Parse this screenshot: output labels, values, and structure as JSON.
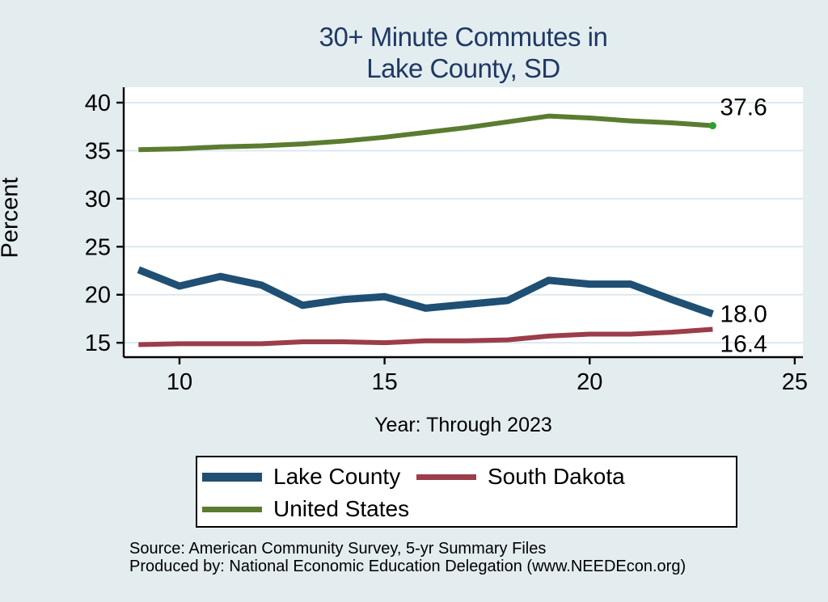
{
  "title": {
    "line1": "30+ Minute Commutes in",
    "line2": "Lake County, SD"
  },
  "y_axis_title": "Percent",
  "x_axis_title": "Year: Through 2023",
  "source": {
    "line1": "Source: American Community Survey, 5-yr Summary Files",
    "line2": "Produced by: National Economic Education Delegation (www.NEEDEcon.org)"
  },
  "legend": {
    "position": "bottom",
    "items": [
      {
        "label": "Lake County",
        "color": "#1f4f72",
        "swatch_height": 11
      },
      {
        "label": "South Dakota",
        "color": "#9c3d4a",
        "swatch_height": 7
      },
      {
        "label": "United States",
        "color": "#5a7c30",
        "swatch_height": 7
      }
    ]
  },
  "colors": {
    "background": "#e3edf0",
    "plot_background": "#ffffff",
    "gridline": "#dce8f1",
    "axis": "#000000",
    "title": "#1f3864",
    "end_marker": "#2f9e33"
  },
  "chart_data": {
    "type": "line",
    "title": "30+ Minute Commutes in Lake County, SD",
    "xlabel": "Year: Through 2023",
    "ylabel": "Percent",
    "grid": true,
    "x": [
      9,
      10,
      11,
      12,
      13,
      14,
      15,
      16,
      17,
      18,
      19,
      20,
      21,
      22,
      23
    ],
    "x_axis": {
      "ticks": [
        10,
        15,
        20,
        25
      ],
      "range": [
        8.64,
        25.2
      ]
    },
    "y_axis": {
      "ticks": [
        15,
        20,
        25,
        30,
        35,
        40
      ],
      "range": [
        13.5,
        41.6
      ]
    },
    "series": [
      {
        "name": "Lake County",
        "color": "#1f4f72",
        "line_width": 9,
        "values": [
          22.6,
          20.9,
          21.9,
          21.0,
          18.9,
          19.5,
          19.8,
          18.6,
          19.0,
          19.4,
          21.5,
          21.1,
          21.1,
          19.5,
          18.0
        ],
        "end_label": "18.0",
        "end_label_dy": 0,
        "end_marker": false
      },
      {
        "name": "South Dakota",
        "color": "#9c3d4a",
        "line_width": 6,
        "values": [
          14.8,
          14.9,
          14.9,
          14.9,
          15.1,
          15.1,
          15.0,
          15.2,
          15.2,
          15.3,
          15.7,
          15.9,
          15.9,
          16.1,
          16.4
        ],
        "end_label": "16.4",
        "end_label_dy": 18,
        "end_marker": false
      },
      {
        "name": "United States",
        "color": "#5a7c30",
        "line_width": 6,
        "values": [
          35.1,
          35.2,
          35.4,
          35.5,
          35.7,
          36.0,
          36.4,
          36.9,
          37.4,
          38.0,
          38.6,
          38.4,
          38.1,
          37.9,
          37.6
        ],
        "end_label": "37.6",
        "end_label_dy": -23,
        "end_marker": true
      }
    ]
  }
}
